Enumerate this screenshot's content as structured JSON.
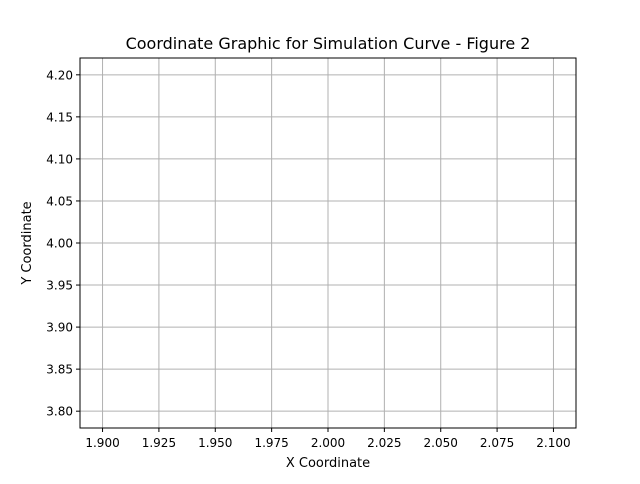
{
  "chart_data": {
    "type": "line",
    "title": "Coordinate Graphic for Simulation Curve - Figure 2",
    "xlabel": "X Coordinate",
    "ylabel": "Y Coordinate",
    "xlim": [
      1.89,
      2.11
    ],
    "ylim": [
      3.78,
      4.22
    ],
    "x_ticks": [
      "1.900",
      "1.925",
      "1.950",
      "1.975",
      "2.000",
      "2.025",
      "2.050",
      "2.075",
      "2.100"
    ],
    "y_ticks": [
      "3.80",
      "3.85",
      "3.90",
      "3.95",
      "4.00",
      "4.05",
      "4.10",
      "4.15",
      "4.20"
    ],
    "grid": true,
    "series": [
      {
        "x": [],
        "y": []
      }
    ],
    "colors": {
      "grid": "#b0b0b0",
      "axes": "#000000",
      "background": "#ffffff"
    }
  }
}
